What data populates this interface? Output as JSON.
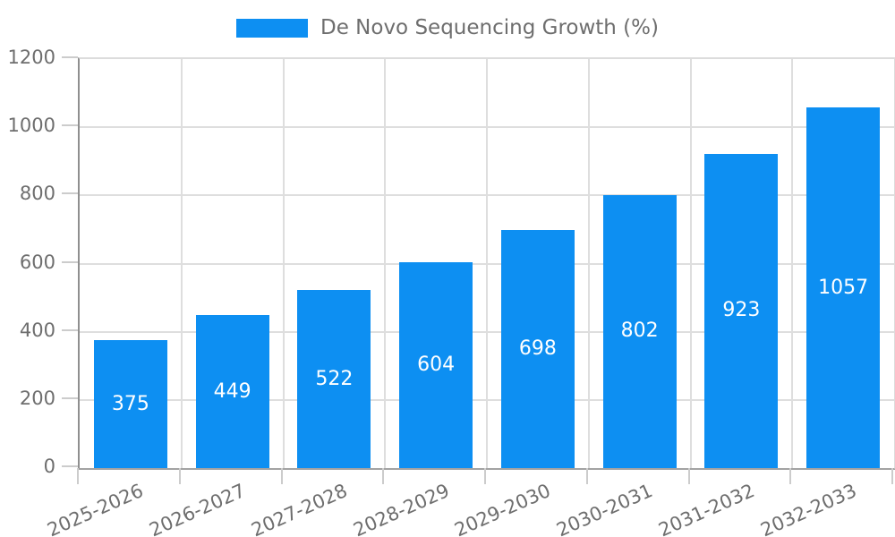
{
  "chart_data": {
    "type": "bar",
    "legend": {
      "label": "De Novo Sequencing Growth (%)",
      "position": "top-center"
    },
    "categories": [
      "2025-2026",
      "2026-2027",
      "2027-2028",
      "2028-2029",
      "2029-2030",
      "2030-2031",
      "2031-2032",
      "2032-2033"
    ],
    "values": [
      375,
      449,
      522,
      604,
      698,
      802,
      923,
      1057
    ],
    "xlabel": "",
    "ylabel": "",
    "ylim": [
      0,
      1200
    ],
    "yticks": [
      0,
      200,
      400,
      600,
      800,
      1000,
      1200
    ],
    "grid": true,
    "x_tick_rotation_deg": -24,
    "colors": {
      "bar": "#0d8ff2",
      "value_label": "#ffffff",
      "axis_text": "#6e6e6e",
      "grid_line": "#dedede",
      "tick_mark": "#cccccc"
    }
  }
}
